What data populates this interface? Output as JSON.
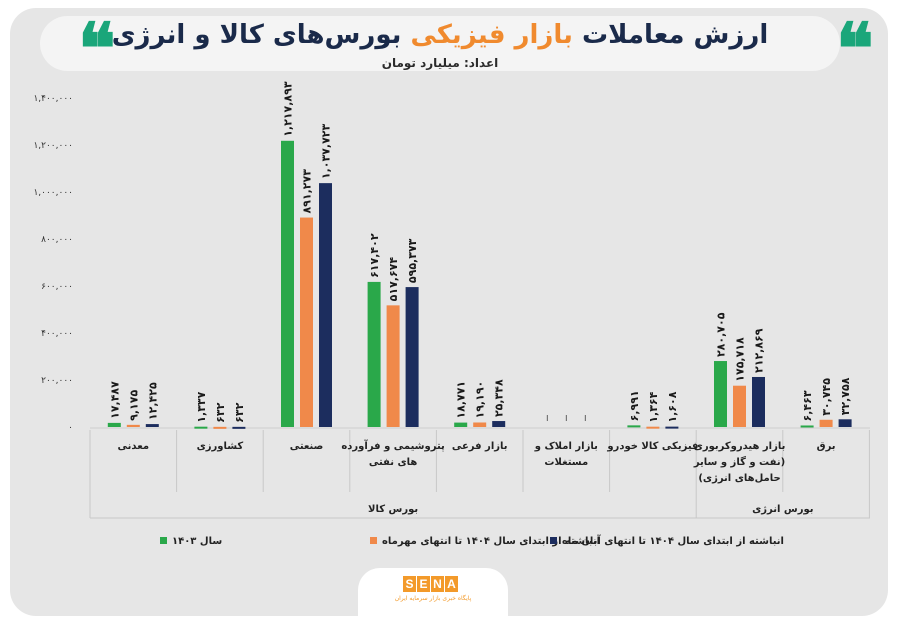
{
  "header": {
    "title_pre": "ارزش معاملات ",
    "title_highlight": "بازار فیزیکی",
    "title_post": " بورس‌های کالا و انرژی",
    "subtitle": "اعداد: میلیارد تومان",
    "quote_glyph": "❝"
  },
  "colors": {
    "series_1403": "#2aa84a",
    "series_mehr": "#f0894a",
    "series_aban": "#1c2d5e",
    "highlight": "#f08a2e",
    "background": "#e6e6e6"
  },
  "chart_data": {
    "type": "bar",
    "title": "ارزش معاملات بازار فیزیکی بورس‌های کالا و انرژی",
    "ylabel": "",
    "xlabel": "",
    "ylim": [
      0,
      1400000
    ],
    "yticks": [
      "۰",
      "۲۰۰,۰۰۰",
      "۴۰۰,۰۰۰",
      "۶۰۰,۰۰۰",
      "۸۰۰,۰۰۰",
      "۱,۰۰۰,۰۰۰",
      "۱,۲۰۰,۰۰۰",
      "۱,۴۰۰,۰۰۰"
    ],
    "ytick_values": [
      0,
      200000,
      400000,
      600000,
      800000,
      1000000,
      1200000,
      1400000
    ],
    "categories": [
      [
        "معدنی"
      ],
      [
        "کشاورزی"
      ],
      [
        "صنعتی"
      ],
      [
        "پتروشیمی و فرآورده",
        "های نفتی"
      ],
      [
        "بازار فرعی"
      ],
      [
        "بازار املاک و",
        "مستغلات"
      ],
      [
        "فیزیکی کالا خودرو"
      ],
      [
        "بازار هیدروکربوری",
        "(نفت و گاز و سایر",
        "حامل‌های انرژی)"
      ],
      [
        "برق"
      ]
    ],
    "groups": [
      {
        "label": "بورس کالا"
      },
      {
        "label": "بورس انرژی"
      }
    ],
    "series": [
      {
        "name": "سال ۱۴۰۳",
        "values": [
          17487,
          1337,
          1217893,
          617402,
          18771,
          0,
          6991,
          280705,
          6463
        ],
        "labels": [
          "۱۷,۴۸۷",
          "۱,۳۳۷",
          "۱,۲۱۷,۸۹۳",
          "۶۱۷,۴۰۲",
          "۱۸,۷۷۱",
          "",
          "۶,۹۹۱",
          "۲۸۰,۷۰۵",
          "۶,۴۶۳"
        ]
      },
      {
        "name": "انباشته از ابتدای سال ۱۴۰۴ تا انتهای مهرماه",
        "values": [
          9175,
          632,
          891273,
          517674,
          19190,
          0,
          1364,
          175718,
          30745
        ],
        "labels": [
          "۹,۱۷۵",
          "۶۳۲",
          "۸۹۱,۲۷۳",
          "۵۱۷,۶۷۴",
          "۱۹,۱۹۰",
          "",
          "۱,۳۶۴",
          "۱۷۵,۷۱۸",
          "۳۰,۷۴۵"
        ]
      },
      {
        "name": "انباشته از ابتدای سال ۱۴۰۴ تا انتهای آبان ماه",
        "values": [
          12425,
          632,
          1037723,
          595373,
          25348,
          0,
          1608,
          212869,
          32758
        ],
        "labels": [
          "۱۲,۴۲۵",
          "۶۳۲",
          "۱,۰۳۷,۷۲۳",
          "۵۹۵,۳۷۳",
          "۲۵,۳۴۸",
          "",
          "۱,۶۰۸",
          "۲۱۲,۸۶۹",
          "۳۲,۷۵۸"
        ]
      }
    ],
    "grid": false,
    "legend": "bottom"
  },
  "logo": {
    "letters": [
      "S",
      "E",
      "N",
      "A"
    ],
    "tagline": "پایگاه خبری بازار سرمایه ایران"
  }
}
